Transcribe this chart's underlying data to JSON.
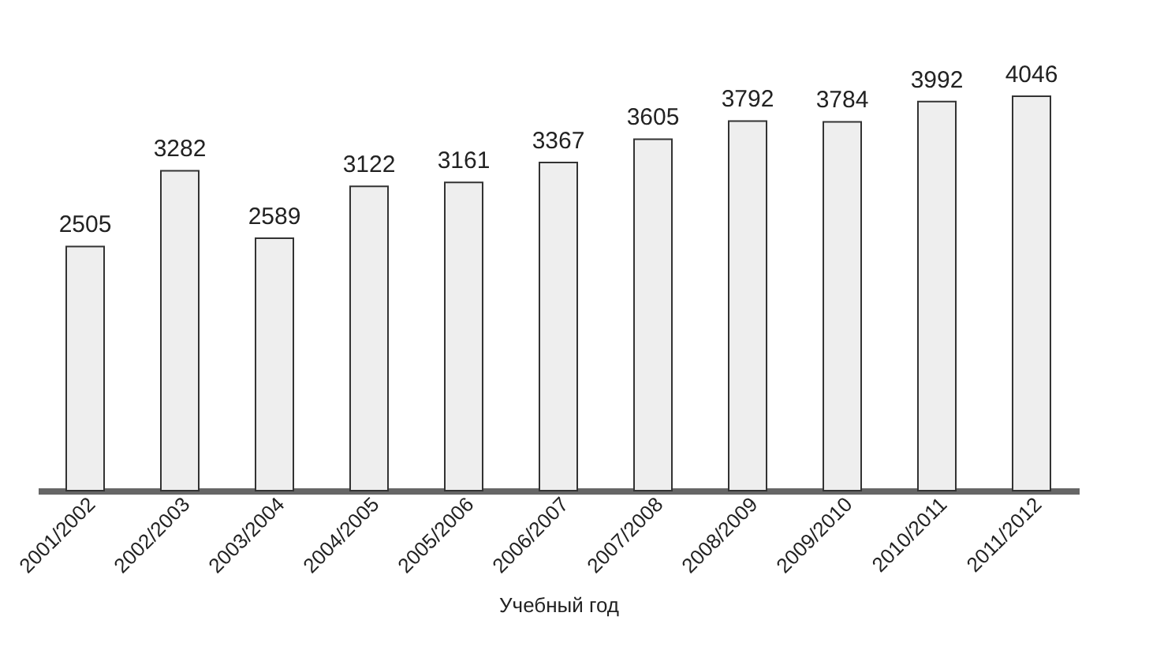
{
  "chart_data": {
    "type": "bar",
    "xlabel": "Учебный год",
    "categories": [
      "2001/2002",
      "2002/2003",
      "2003/2004",
      "2004/2005",
      "2005/2006",
      "2006/2007",
      "2007/2008",
      "2008/2009",
      "2009/2010",
      "2010/2011",
      "2011/2012"
    ],
    "values": [
      2505,
      3282,
      2589,
      3122,
      3161,
      3367,
      3605,
      3792,
      3784,
      3992,
      4046
    ],
    "color": "#eeeeee",
    "data_labels": true
  }
}
